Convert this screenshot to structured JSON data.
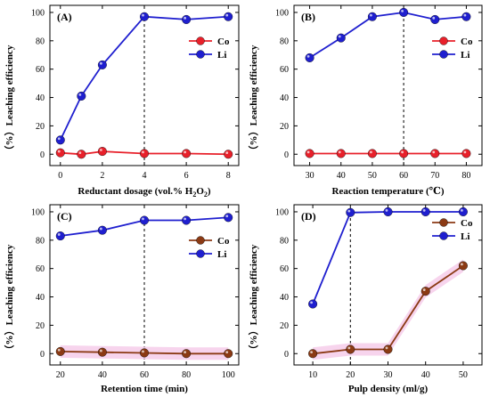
{
  "colors": {
    "co_red": "#e8202a",
    "co_brown": "#8b3a14",
    "li_blue": "#1f1fcf",
    "band": "#f6cdea"
  },
  "chart_data": [
    {
      "type": "line",
      "panel_label": "(A)",
      "xlabel": "Reductant dosage (vol.% H",
      "xlabel_sub": "2",
      "xlabel_tail": "O",
      "xlabel_sub2": "2",
      "xlabel_end": ")",
      "ylabel": "Leaching efficiency",
      "ylabel_unit": "（%）",
      "x": [
        0,
        1,
        2,
        4,
        6,
        8
      ],
      "xticks": [
        "0",
        "2",
        "4",
        "6",
        "8"
      ],
      "xtick_values": [
        0,
        2,
        4,
        6,
        8
      ],
      "xlim": [
        -0.5,
        8.5
      ],
      "yticks": [
        "0",
        "20",
        "40",
        "60",
        "80",
        "100"
      ],
      "ylim": [
        -8,
        105
      ],
      "dashed_x": 4,
      "legend": "middle-right",
      "series": [
        {
          "name": "Co",
          "values": [
            1,
            0,
            2,
            0.5,
            0.5,
            0
          ],
          "color": "#e8202a",
          "band": false
        },
        {
          "name": "Li",
          "values": [
            10,
            41,
            63,
            97,
            95,
            97
          ],
          "color": "#1f1fcf",
          "band": false
        }
      ]
    },
    {
      "type": "line",
      "panel_label": "(B)",
      "xlabel": "Reaction temperature (℃)",
      "ylabel": "Leaching efficiency",
      "ylabel_unit": "（%）",
      "x": [
        30,
        40,
        50,
        60,
        70,
        80
      ],
      "xticks": [
        "30",
        "40",
        "50",
        "60",
        "70",
        "80"
      ],
      "xtick_values": [
        30,
        40,
        50,
        60,
        70,
        80
      ],
      "xlim": [
        25,
        85
      ],
      "yticks": [
        "0",
        "20",
        "40",
        "60",
        "80",
        "100"
      ],
      "ylim": [
        -8,
        105
      ],
      "dashed_x": 60,
      "legend": "middle-right",
      "series": [
        {
          "name": "Co",
          "values": [
            0.5,
            0.5,
            0.5,
            0.5,
            0.5,
            0.5
          ],
          "color": "#e8202a",
          "band": false
        },
        {
          "name": "Li",
          "values": [
            68,
            82,
            97,
            100,
            95,
            97
          ],
          "color": "#1f1fcf",
          "band": false
        }
      ]
    },
    {
      "type": "line",
      "panel_label": "(C)",
      "xlabel": "Retention time (min)",
      "ylabel": "Leaching efficiency",
      "ylabel_unit": "（%）",
      "x": [
        20,
        40,
        60,
        80,
        100
      ],
      "xticks": [
        "20",
        "40",
        "60",
        "80",
        "100"
      ],
      "xtick_values": [
        20,
        40,
        60,
        80,
        100
      ],
      "xlim": [
        15,
        105
      ],
      "yticks": [
        "0",
        "20",
        "40",
        "60",
        "80",
        "100"
      ],
      "ylim": [
        -8,
        105
      ],
      "dashed_x": 60,
      "legend": "middle-right",
      "series": [
        {
          "name": "Co",
          "values": [
            1.5,
            1,
            0.5,
            0,
            0
          ],
          "color": "#8b3a14",
          "band": true
        },
        {
          "name": "Li",
          "values": [
            83,
            87,
            94,
            94,
            96
          ],
          "color": "#1f1fcf",
          "band": false
        }
      ]
    },
    {
      "type": "line",
      "panel_label": "(D)",
      "xlabel": "Pulp density (ml/g)",
      "ylabel": "Leaching efficiency",
      "ylabel_unit": "（%）",
      "x": [
        10,
        20,
        30,
        40,
        50
      ],
      "xticks": [
        "10",
        "20",
        "30",
        "40",
        "50"
      ],
      "xtick_values": [
        10,
        20,
        30,
        40,
        50
      ],
      "xlim": [
        5,
        55
      ],
      "yticks": [
        "0",
        "20",
        "40",
        "60",
        "80",
        "100"
      ],
      "ylim": [
        -8,
        105
      ],
      "dashed_x": 20,
      "legend": "top-right",
      "series": [
        {
          "name": "Co",
          "values": [
            0,
            3,
            3,
            44,
            62
          ],
          "color": "#8b3a14",
          "band": true
        },
        {
          "name": "Li",
          "values": [
            35,
            99.5,
            100,
            100,
            100
          ],
          "color": "#1f1fcf",
          "band": false
        }
      ]
    }
  ]
}
